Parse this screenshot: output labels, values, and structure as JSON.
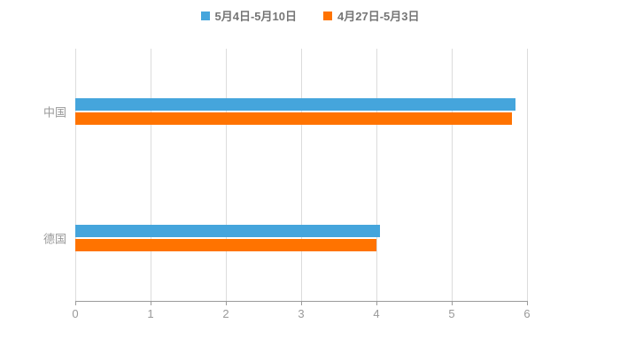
{
  "chart_data": {
    "type": "bar",
    "orientation": "horizontal",
    "title": "",
    "categories": [
      "中国",
      "德国"
    ],
    "series": [
      {
        "name": "5月4日-5月10日",
        "color": "#45A5DC",
        "values": [
          5.85,
          4.05
        ]
      },
      {
        "name": "4月27日-5月3日",
        "color": "#FF7300",
        "values": [
          5.8,
          4.0
        ]
      }
    ],
    "xlabel": "",
    "ylabel": "",
    "xlim": [
      0,
      6
    ],
    "xticks": [
      0,
      1,
      2,
      3,
      4,
      5,
      6
    ],
    "grid": true,
    "legend_position": "top"
  },
  "colors": {
    "background": "#ffffff",
    "gridline": "#dcdcdc",
    "axis": "#9b9b9b",
    "label_text": "#999999",
    "legend_text": "#757575"
  }
}
